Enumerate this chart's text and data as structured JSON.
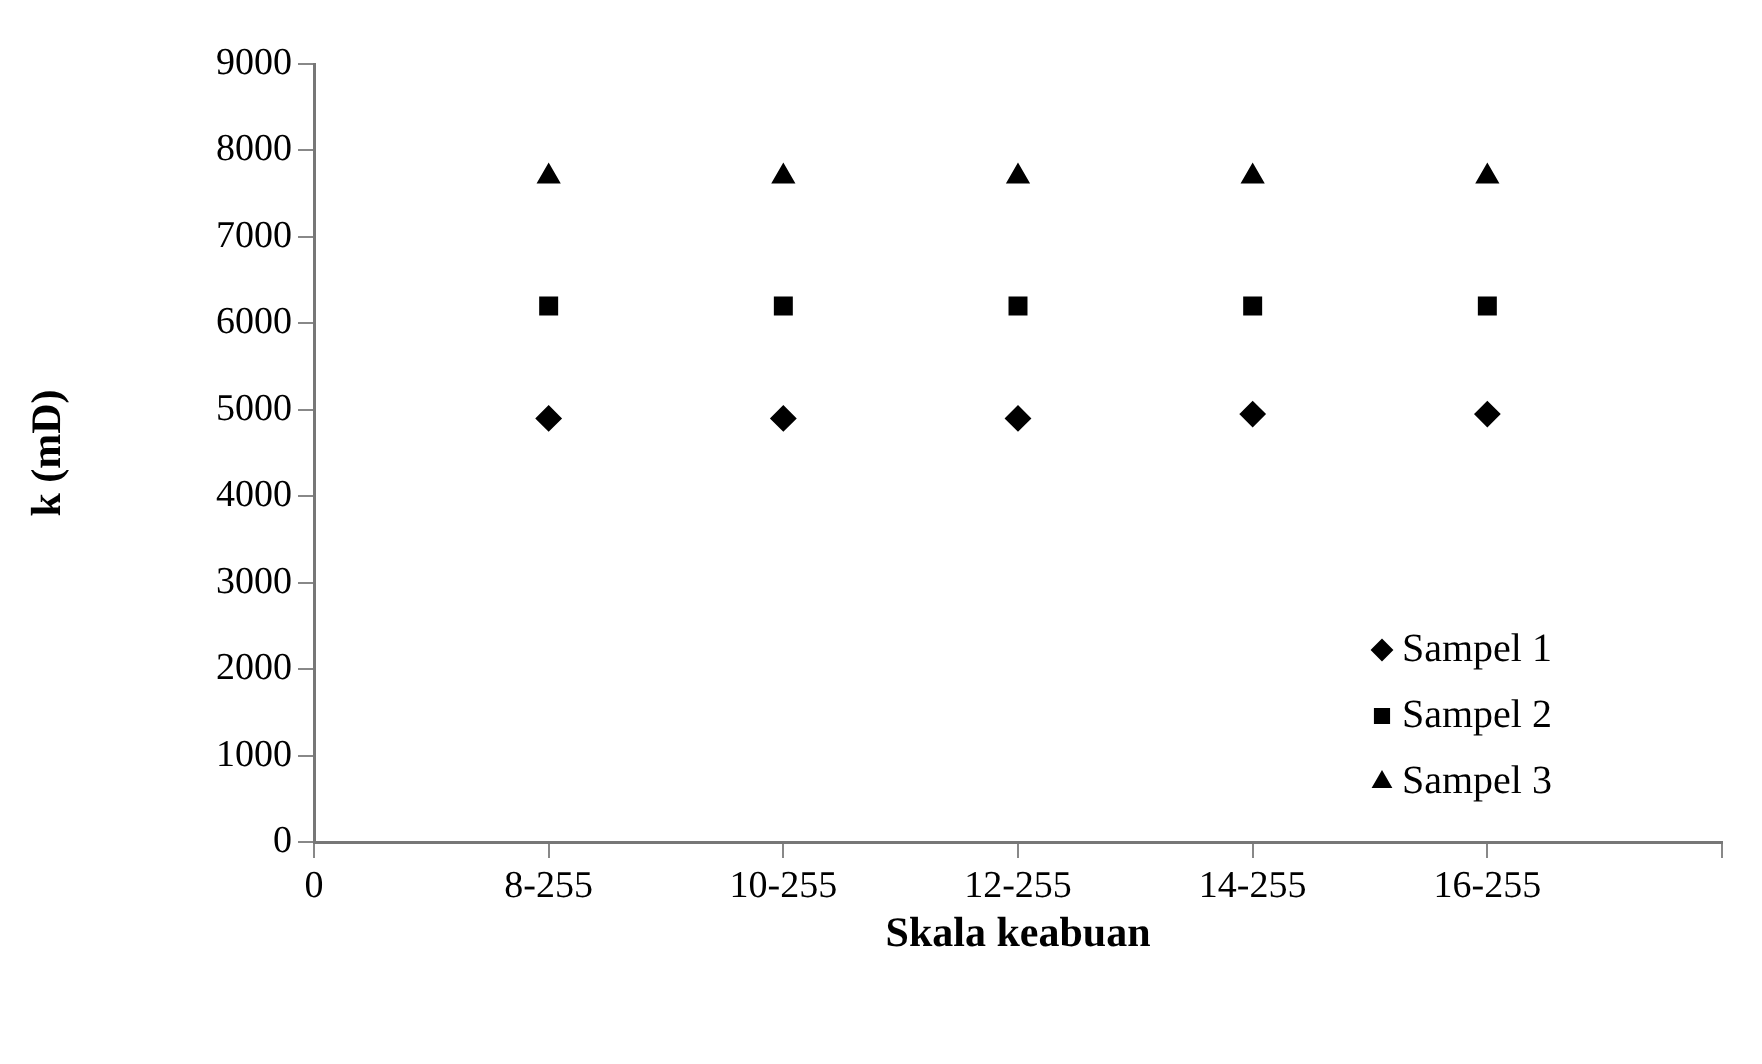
{
  "chart_data": {
    "type": "scatter",
    "xlabel": "Skala keabuan",
    "ylabel": "k (mD)",
    "categories": [
      "0",
      "8-255",
      "10-255",
      "12-255",
      "14-255",
      "16-255",
      null
    ],
    "ylim": [
      0,
      9000
    ],
    "yticks": [
      0,
      1000,
      2000,
      3000,
      4000,
      5000,
      6000,
      7000,
      8000,
      9000
    ],
    "grid": false,
    "legend": "bottom right",
    "series": [
      {
        "name": "Sampel 1",
        "color": "#000000",
        "marker": "diamond",
        "values": [
          null,
          4900,
          4900,
          4900,
          4950,
          4950,
          null
        ]
      },
      {
        "name": "Sampel 2",
        "color": "#000000",
        "marker": "square",
        "values": [
          null,
          6200,
          6200,
          6200,
          6200,
          6200,
          null
        ]
      },
      {
        "name": "Sampel 3",
        "color": "#000000",
        "marker": "triangle",
        "values": [
          null,
          7700,
          7700,
          7700,
          7700,
          7700,
          null
        ]
      }
    ]
  }
}
